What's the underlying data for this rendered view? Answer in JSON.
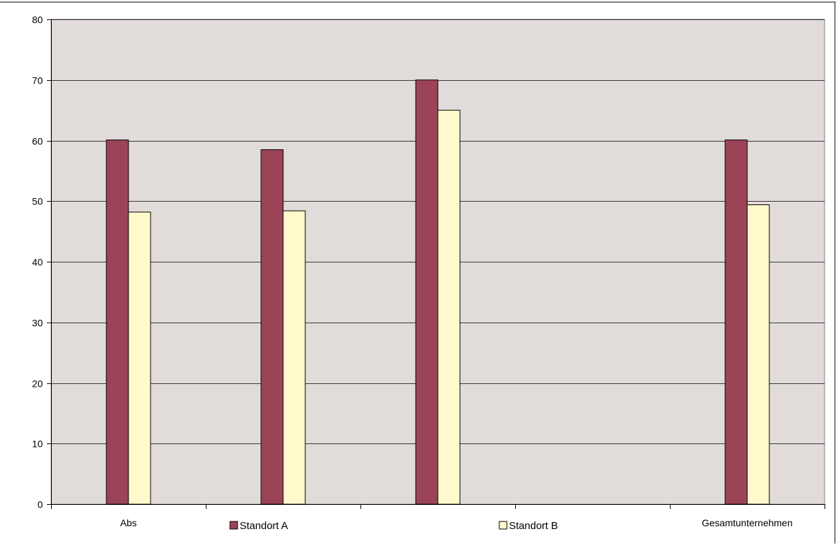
{
  "chart_data": {
    "type": "bar",
    "categories": [
      "Abs",
      "",
      "",
      "",
      "Gesamtunternehmen"
    ],
    "series": [
      {
        "name": "Standort A",
        "color": "#9b4458",
        "values": [
          60.1,
          58.5,
          70.0,
          null,
          60.1
        ]
      },
      {
        "name": "Standort B",
        "color": "#fffacc",
        "values": [
          48.2,
          48.4,
          65.0,
          null,
          49.4
        ]
      }
    ],
    "ylim": [
      0,
      80
    ],
    "yticks": [
      0,
      10,
      20,
      30,
      40,
      50,
      60,
      70,
      80
    ],
    "grid": true,
    "plot_background": "#e1dbd9",
    "legend_position": "bottom"
  }
}
